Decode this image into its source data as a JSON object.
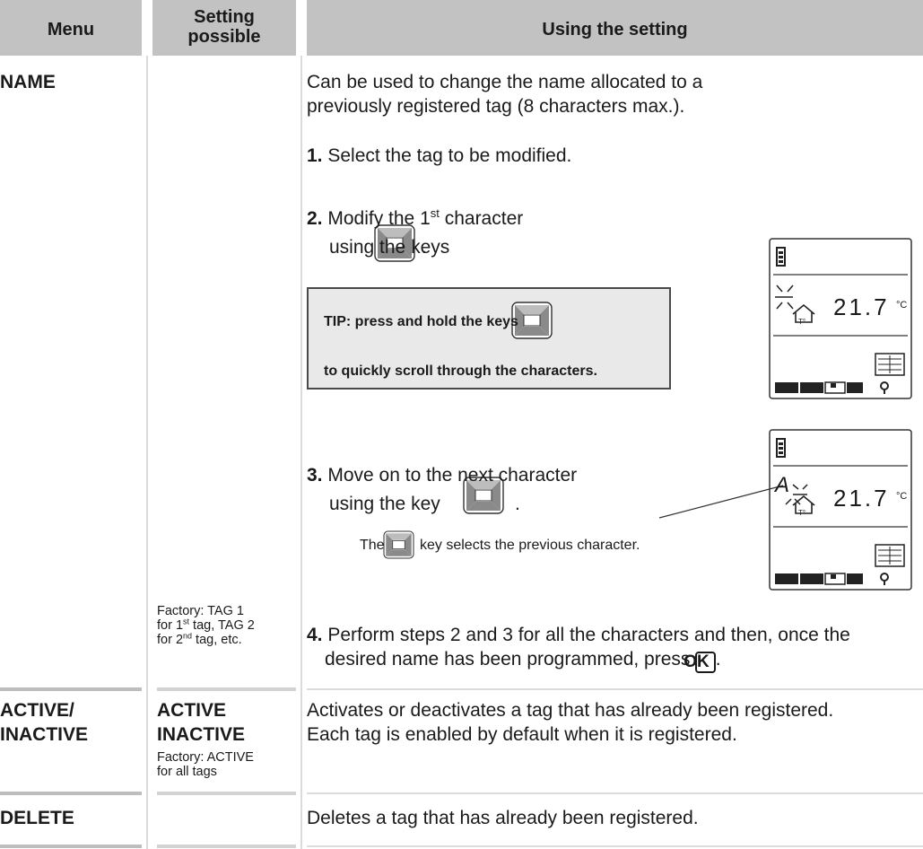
{
  "header": {
    "menu": "Menu",
    "setting": "Setting possible",
    "using": "Using the setting"
  },
  "rows": [
    {
      "menu": "NAME",
      "setting": {
        "line1": "Factory: TAG 1",
        "line2_a": "for 1",
        "sup1": "st",
        "line2_b": " tag, TAG 2",
        "line3_a": "for 2",
        "sup2": "nd",
        "line3_b": " tag, etc."
      },
      "using": {
        "intro": "Can be used to change the name allocated to a previously registered tag (8 characters max.).",
        "step1_num": "1.",
        "step1": " Select the tag to be modified.",
        "step2_num": "2.",
        "step2_a": " Modify the 1",
        "step2_sup": "st",
        "step2_b": " character",
        "step2_c": "using the keys",
        "period": ".",
        "tip_a": "TIP: press and hold the keys",
        "tip_b": "to quickly scroll through the characters.",
        "step3_num": "3.",
        "step3_a": " Move on to the next character",
        "step3_b": "using the key",
        "note_a": "The",
        "note_b": "key selects the previous character.",
        "step4_num": "4.",
        "step4": " Perform steps 2 and 3 for all the characters and then, once the desired name has been programmed, press",
        "ok": "OK"
      }
    },
    {
      "menu_a": "ACTIVE/",
      "menu_b": "INACTIVE",
      "setting": {
        "option1": "ACTIVE",
        "option2": "INACTIVE",
        "factory_a": "Factory: ACTIVE",
        "factory_b": "for all tags"
      },
      "using": {
        "line1": "Activates or deactivates a tag that has already been registered.",
        "line2": "Each tag is enabled by default when it is registered."
      }
    },
    {
      "menu": "DELETE",
      "using": "Deletes a tag that has already been registered."
    }
  ],
  "display": {
    "temp": "21.7",
    "unit": "°C",
    "house_label": "T°",
    "char": "A"
  }
}
